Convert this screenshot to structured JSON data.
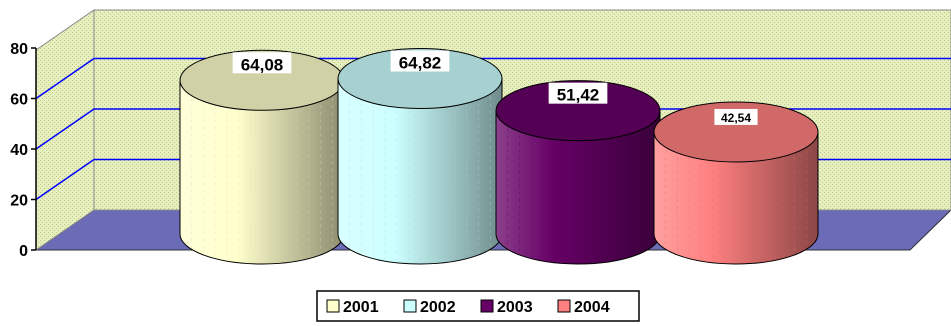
{
  "chart_data": {
    "type": "bar",
    "subtype": "3d-cylinder",
    "categories": [
      "2001",
      "2002",
      "2003",
      "2004"
    ],
    "values": [
      64.08,
      64.82,
      51.42,
      42.54
    ],
    "data_labels": [
      "64,08",
      "64,82",
      "51,42",
      "42,54"
    ],
    "series": [
      {
        "name": "2001",
        "value": 64.08,
        "label": "64,08",
        "color": "#ffffcc"
      },
      {
        "name": "2002",
        "value": 64.82,
        "label": "64,82",
        "color": "#ccffff"
      },
      {
        "name": "2003",
        "value": 51.42,
        "label": "51,42",
        "color": "#660066"
      },
      {
        "name": "2004",
        "value": 42.54,
        "label": "42,54",
        "color": "#ff8080"
      }
    ],
    "title": "",
    "xlabel": "",
    "ylabel": "",
    "ylim": [
      0,
      80
    ],
    "yticks": [
      0,
      20,
      40,
      60,
      80
    ],
    "ytick_labels": [
      "0",
      "20",
      "40",
      "60",
      "80"
    ],
    "grid": true,
    "gridline_color": "#0000ff",
    "wall_color": "#e8f0c0",
    "floor_color": "#6b6bb8",
    "legend": {
      "position": "bottom",
      "entries": [
        "2001",
        "2002",
        "2003",
        "2004"
      ]
    }
  }
}
